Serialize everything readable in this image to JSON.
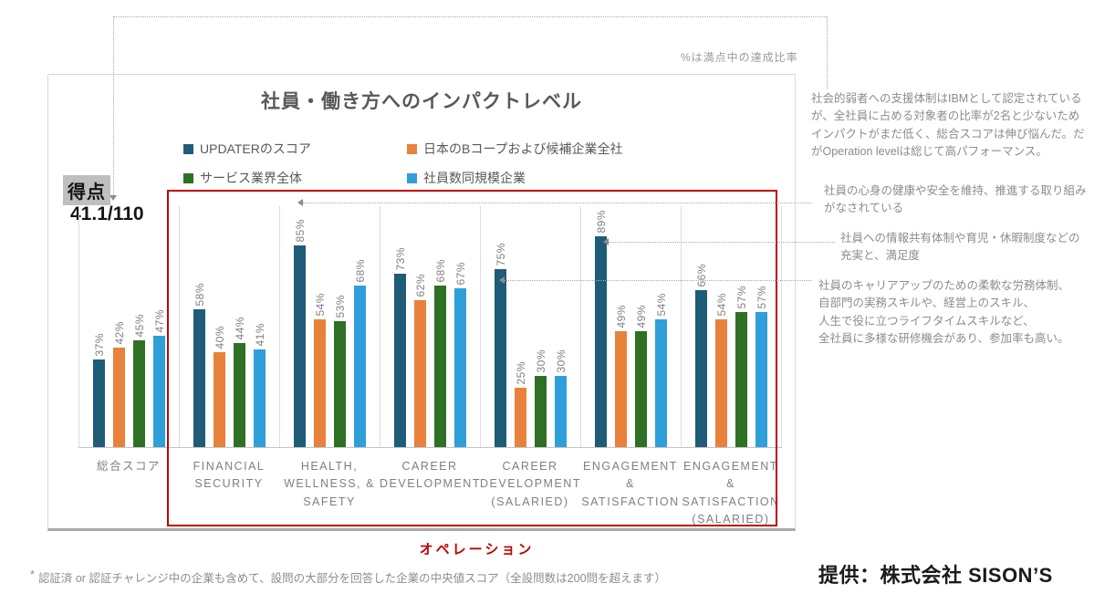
{
  "page": {
    "top_right_note": "%は満点中の達成比率",
    "operation_label": "オペレーション",
    "footnote_mark": "*",
    "footnote": "認証済 or 認証チャレンジ中の企業も含めて、設問の大部分を回答した企業の中央値スコア（全設問数は200問を超えます）",
    "provider": "提供：株式会社 SISON’S"
  },
  "score": {
    "label": "得点",
    "value": "41.1/110"
  },
  "chart_data": {
    "type": "bar",
    "title": "社員・働き方へのインパクトレベル",
    "unit": "%",
    "ylim": [
      0,
      100
    ],
    "grid": false,
    "legend_position": "top",
    "value_labels": "rotated-90-above-bars",
    "categories": [
      "総合スコア",
      "FINANCIAL SECURITY",
      "HEALTH, WELLNESS, & SAFETY",
      "CAREER DEVELOPMENT",
      "CAREER DEVELOPMENT (SALARIED)",
      "ENGAGEMENT & SATISFACTION",
      "ENGAGEMENT & SATISFACTION (SALARIED)"
    ],
    "categories_lines": [
      [
        "総合スコア"
      ],
      [
        "FINANCIAL",
        "SECURITY"
      ],
      [
        "HEALTH,",
        "WELLNESS, &",
        "SAFETY"
      ],
      [
        "CAREER",
        "DEVELOPMENT"
      ],
      [
        "CAREER",
        "DEVELOPMENT",
        "(SALARIED)"
      ],
      [
        "ENGAGEMENT",
        "&",
        "SATISFACTION"
      ],
      [
        "ENGAGEMENT",
        "&",
        "SATISFACTION",
        "(SALARIED)"
      ]
    ],
    "series": [
      {
        "name": "UPDATERのスコア",
        "color": "#1F5C78",
        "values": [
          37,
          58,
          85,
          73,
          75,
          89,
          66
        ]
      },
      {
        "name": "日本のBコープおよび候補企業全社",
        "color": "#E8813B",
        "values": [
          42,
          40,
          54,
          62,
          25,
          49,
          54
        ]
      },
      {
        "name": "サービス業界全体",
        "color": "#2E7024",
        "values": [
          45,
          44,
          53,
          68,
          30,
          49,
          57
        ]
      },
      {
        "name": "社員数同規模企業",
        "color": "#2F9FD9",
        "values": [
          47,
          41,
          68,
          67,
          30,
          54,
          57
        ]
      }
    ]
  },
  "annotations": [
    {
      "text": "社会的弱者への支援体制はIBMとして認定されている\nが、全社員に占める対象者の比率が2名と少ないため\nインパクトがまだ低く、総合スコアは伸び悩んだ。だ\nがOperation levelは総じて高パフォーマンス。"
    },
    {
      "text": "社員の心身の健康や安全を維持、推進する取り組み\nがなされている"
    },
    {
      "text": "社員への情報共有体制や育児・休暇制度などの\n充実と、満足度"
    },
    {
      "text": "社員のキャリアアップのための柔軟な労務体制、\n自部門の実務スキルや、経営上のスキル、\n人生で役に立つライフタイムスキルなど、\n全社員に多様な研修機会があり、参加率も高い。"
    }
  ]
}
